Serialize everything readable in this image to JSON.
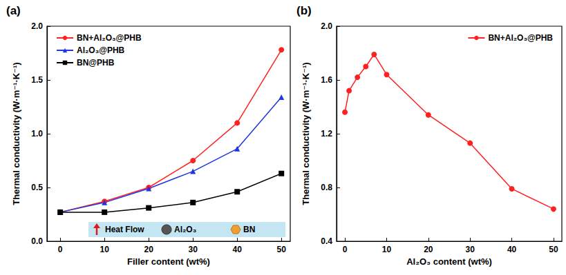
{
  "chart_data": [
    {
      "type": "line",
      "title": "(a)",
      "x_label": "Filler content (wt%)",
      "y_label": "Thermal conductivity (W·m⁻¹·K⁻¹)",
      "x": [
        0,
        10,
        20,
        30,
        40,
        50
      ],
      "series": [
        {
          "name": "BN+Al₂O₃@PHB",
          "color": "#ff2020",
          "marker": "circle",
          "values": [
            0.27,
            0.37,
            0.5,
            0.75,
            1.1,
            1.78
          ]
        },
        {
          "name": "Al₂O₃@PHB",
          "color": "#1f35e0",
          "marker": "triangle",
          "values": [
            0.27,
            0.36,
            0.49,
            0.65,
            0.86,
            1.34
          ]
        },
        {
          "name": "BN@PHB",
          "color": "#000000",
          "marker": "square",
          "values": [
            0.27,
            0.27,
            0.31,
            0.36,
            0.46,
            0.63
          ]
        }
      ],
      "xlim": [
        -3,
        52
      ],
      "xticks": [
        0,
        10,
        20,
        30,
        40,
        50
      ],
      "ylim": [
        0,
        2
      ],
      "yticks": [
        {
          "value": 0,
          "label": "0.0"
        },
        0.5,
        {
          "value": 1,
          "label": "1.0"
        },
        1.5,
        {
          "value": 2,
          "label": "2.0"
        }
      ],
      "legend": "upper left",
      "grid": false,
      "annotations": [
        "Heat Flow",
        "Al₂O₃",
        "BN"
      ]
    },
    {
      "type": "line",
      "title": "(b)",
      "x_label": "Al₂O₃ content (wt%)",
      "y_label": "Thermal conductivity (W·m⁻¹·K⁻¹)",
      "x": [
        0,
        1,
        3,
        5,
        7,
        10,
        20,
        30,
        40,
        50
      ],
      "series": [
        {
          "name": "BN+Al₂O₃@PHB",
          "color": "#ff2020",
          "marker": "circle",
          "values": [
            1.36,
            1.52,
            1.62,
            1.7,
            1.79,
            1.64,
            1.34,
            1.13,
            0.79,
            0.64
          ]
        }
      ],
      "xlim": [
        -2,
        52
      ],
      "xticks": [
        0,
        10,
        20,
        30,
        40,
        50
      ],
      "ylim": [
        0.4,
        2.0
      ],
      "yticks": [
        0.4,
        0.8,
        1.2,
        1.6,
        {
          "value": 2,
          "label": "2.0"
        }
      ],
      "legend": "upper right",
      "grid": false
    }
  ]
}
